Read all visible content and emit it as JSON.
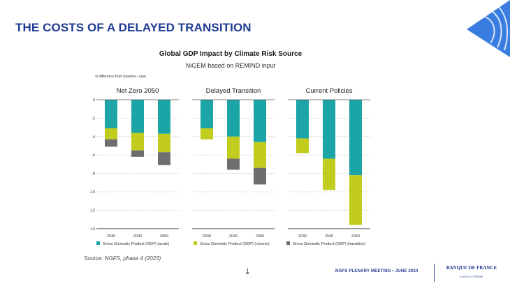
{
  "slide": {
    "title": "THE COSTS OF A DELAYED TRANSITION",
    "source": "Source: NGFS, phase 4 (2023)",
    "page_number": "1",
    "footer_meeting": "NGFS PLENARY MEETING • JUNE 2024",
    "logo_name": "BANQUE DE FRANCE",
    "logo_sub": "EUROSYSTÈME",
    "colors": {
      "title": "#1f3b93",
      "acute": "#1ba5a6",
      "chronic": "#c2cc1e",
      "transition": "#6e6e6e",
      "corner": "#3a7de0"
    }
  },
  "chart_data": {
    "type": "bar",
    "stacked": true,
    "title": "Global GDP Impact by Climate Risk Source",
    "subtitle": "NiGEM based on REMIND input",
    "ylabel": "% difference from baseline / year",
    "ylim": [
      -14,
      0
    ],
    "yticks": [
      0,
      -2,
      -4,
      -6,
      -8,
      -10,
      -12,
      -14
    ],
    "categories": [
      "2030",
      "2040",
      "2050"
    ],
    "series_meta": [
      {
        "key": "acute",
        "name": "Gross Domestic Product (GDP) (acute)",
        "color": "#1ba5a6"
      },
      {
        "key": "chronic",
        "name": "Gross Domestic Product (GDP) (chronic)",
        "color": "#c2cc1e"
      },
      {
        "key": "transition",
        "name": "Gross Domestic Product (GDP) (transition)",
        "color": "#6e6e6e"
      }
    ],
    "panels": [
      {
        "title": "Net Zero 2050",
        "acute": [
          -3.1,
          -3.6,
          -3.7
        ],
        "chronic": [
          -1.2,
          -1.9,
          -2.0
        ],
        "transition": [
          -0.8,
          -0.7,
          -1.4
        ]
      },
      {
        "title": "Delayed Transition",
        "acute": [
          -3.1,
          -4.0,
          -4.6
        ],
        "chronic": [
          -1.2,
          -2.4,
          -2.8
        ],
        "transition": [
          0,
          -1.2,
          -1.8
        ]
      },
      {
        "title": "Current Policies",
        "acute": [
          -4.2,
          -6.4,
          -8.2
        ],
        "chronic": [
          -1.6,
          -3.4,
          -5.4
        ],
        "transition": [
          0,
          0,
          0
        ]
      }
    ]
  }
}
